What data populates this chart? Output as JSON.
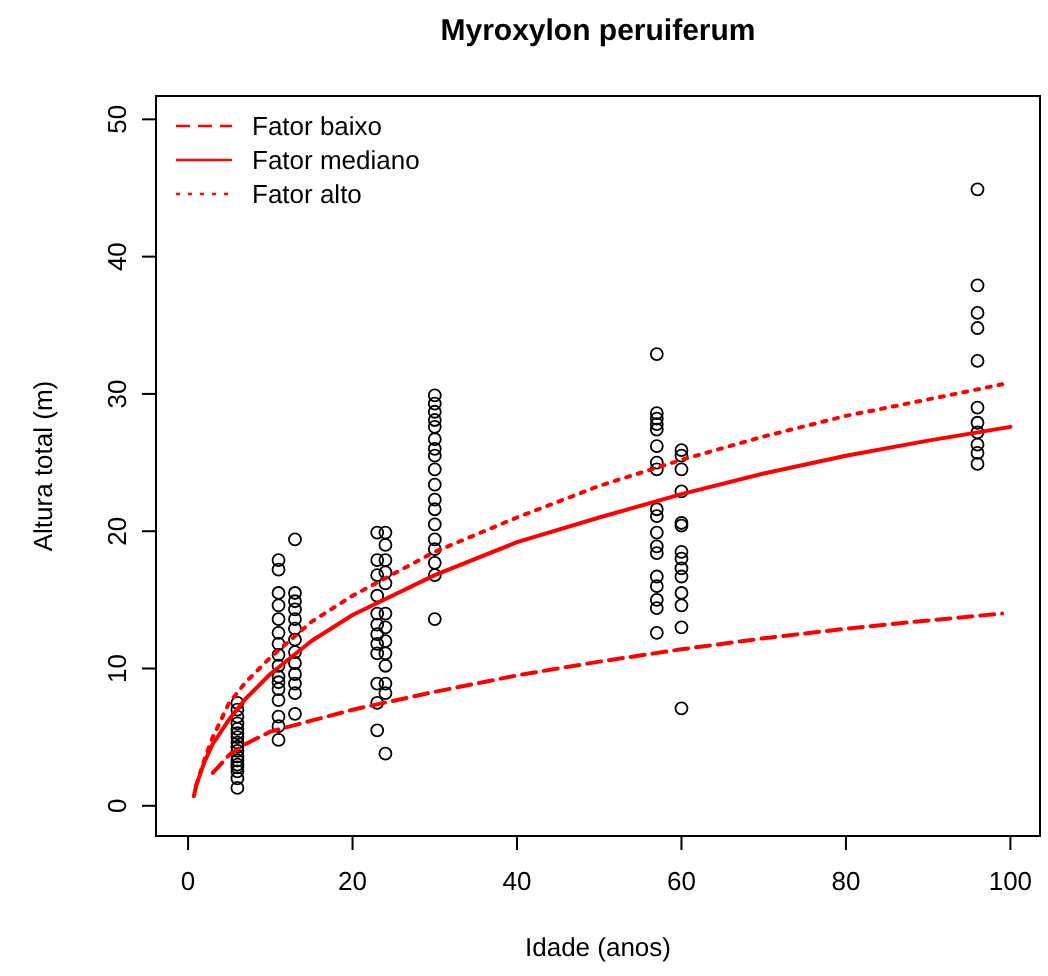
{
  "chart_data": {
    "type": "scatter",
    "title": "Myroxylon peruiferum",
    "xlabel": "Idade (anos)",
    "ylabel": "Altura total (m)",
    "xlim": [
      -3.9,
      103.6
    ],
    "ylim": [
      -2.2,
      51.7
    ],
    "xticks": [
      0,
      20,
      40,
      60,
      80,
      100
    ],
    "yticks": [
      0,
      10,
      20,
      30,
      40,
      50
    ],
    "legend": "top left",
    "series": [
      {
        "color": "#000000",
        "marker": "circle",
        "x": [
          6,
          6,
          6,
          6,
          6,
          6,
          6,
          6,
          6,
          6,
          6,
          6,
          6,
          6,
          6,
          6,
          6,
          11,
          11,
          11,
          11,
          11,
          11,
          11,
          11,
          11,
          11,
          11,
          11,
          11,
          11,
          11,
          11,
          13,
          13,
          13,
          13,
          13,
          13,
          13,
          13,
          13,
          13,
          13,
          13,
          13,
          23,
          23,
          23,
          23,
          23,
          23,
          23,
          23,
          23,
          23,
          23,
          23,
          24,
          24,
          24,
          24,
          24,
          24,
          24,
          24,
          24,
          24,
          24,
          24,
          24,
          30,
          30,
          30,
          30,
          30,
          30,
          30,
          30,
          30,
          30,
          30,
          30,
          30,
          30,
          30,
          30,
          30,
          30,
          57,
          57,
          57,
          57,
          57,
          57,
          57,
          57,
          57,
          57,
          57,
          57,
          57,
          57,
          57,
          57,
          57,
          57,
          60,
          60,
          60,
          60,
          60,
          60,
          60,
          60,
          60,
          60,
          60,
          60,
          60,
          60,
          96,
          96,
          96,
          96,
          96,
          96,
          96,
          96,
          96,
          96,
          96
        ],
        "values": [
          1.3,
          2.0,
          2.5,
          2.8,
          3.0,
          3.3,
          3.6,
          4.0,
          4.3,
          4.6,
          5.0,
          5.3,
          5.6,
          6.0,
          6.5,
          7.0,
          7.5,
          17.9,
          17.2,
          15.5,
          14.6,
          13.6,
          12.6,
          11.8,
          11.0,
          10.2,
          9.4,
          8.5,
          7.7,
          6.5,
          5.8,
          4.8,
          9.0,
          19.4,
          15.5,
          14.9,
          14.3,
          13.6,
          12.9,
          12.1,
          11.2,
          10.4,
          9.6,
          8.9,
          8.2,
          6.7,
          19.9,
          17.9,
          16.8,
          15.3,
          14.0,
          13.2,
          12.5,
          11.8,
          11.1,
          8.9,
          7.5,
          5.5,
          19.9,
          19.0,
          17.9,
          17.0,
          16.2,
          14.0,
          13.0,
          12.0,
          11.1,
          10.2,
          8.9,
          8.2,
          3.8,
          29.9,
          29.3,
          28.7,
          28.1,
          27.6,
          26.7,
          26.0,
          25.5,
          24.5,
          23.4,
          22.3,
          21.6,
          20.5,
          19.4,
          18.7,
          17.7,
          16.8,
          13.6,
          32.9,
          28.6,
          28.2,
          27.8,
          27.4,
          26.2,
          25.0,
          24.5,
          21.6,
          21.1,
          19.9,
          18.9,
          18.4,
          16.7,
          16.0,
          15.0,
          14.4,
          12.6,
          25.9,
          25.5,
          24.5,
          22.9,
          20.6,
          20.4,
          18.5,
          18.0,
          17.3,
          16.7,
          15.5,
          14.6,
          13.0,
          7.1,
          44.9,
          37.9,
          35.9,
          34.8,
          32.4,
          29.0,
          27.9,
          27.2,
          26.3,
          25.7,
          24.9
        ]
      },
      {
        "type": "line",
        "name": "Fator baixo",
        "color": "#ff0000",
        "line_style": "dashed",
        "x": [
          3,
          5,
          7,
          10,
          15,
          20,
          30,
          40,
          50,
          60,
          70,
          80,
          90,
          99
        ],
        "values": [
          2.4,
          3.7,
          4.5,
          5.4,
          6.2,
          7.0,
          8.3,
          9.5,
          10.5,
          11.4,
          12.2,
          12.9,
          13.5,
          14.0
        ]
      },
      {
        "type": "line",
        "name": "Fator mediano",
        "color": "#ff0000",
        "line_style": "solid",
        "x": [
          0.7,
          1,
          2,
          3,
          5,
          7,
          10,
          15,
          20,
          30,
          40,
          50,
          60,
          70,
          80,
          90,
          100
        ],
        "values": [
          0.7,
          1.5,
          3.2,
          4.5,
          6.3,
          7.8,
          9.6,
          12.0,
          13.9,
          16.8,
          19.2,
          21.0,
          22.7,
          24.2,
          25.5,
          26.6,
          27.6
        ]
      },
      {
        "type": "line",
        "name": "Fator alto",
        "color": "#ff0000",
        "line_style": "dotted",
        "x": [
          1,
          2,
          3,
          5,
          7,
          10,
          15,
          20,
          30,
          40,
          50,
          60,
          70,
          80,
          90,
          99
        ],
        "values": [
          1.5,
          3.4,
          5.0,
          7.5,
          9.0,
          10.8,
          13.4,
          15.3,
          18.5,
          21.0,
          23.3,
          25.2,
          26.9,
          28.4,
          29.6,
          30.7
        ]
      }
    ]
  }
}
